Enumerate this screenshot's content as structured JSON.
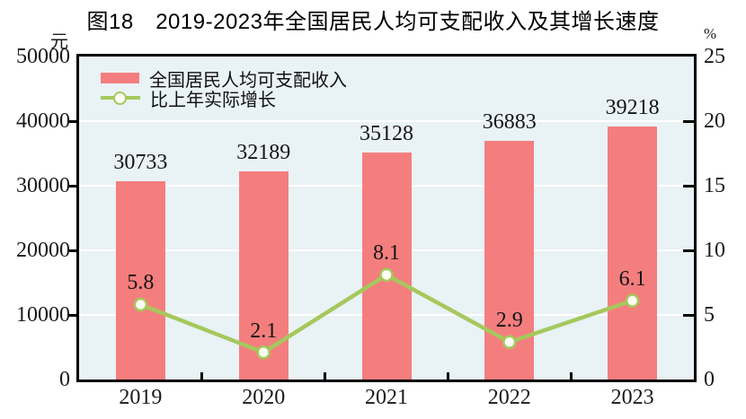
{
  "chart_data": {
    "type": "combo",
    "title": "图18　2019-2023年全国居民人均可支配收入及其增长速度",
    "categories": [
      "2019",
      "2020",
      "2021",
      "2022",
      "2023"
    ],
    "series": [
      {
        "name": "全国居民人均可支配收入",
        "type": "bar",
        "axis": "left",
        "values": [
          30733,
          32189,
          35128,
          36883,
          39218
        ],
        "labels": [
          "30733",
          "32189",
          "35128",
          "36883",
          "39218"
        ],
        "color": "#f47e7e"
      },
      {
        "name": "比上年实际增长",
        "type": "line",
        "axis": "right",
        "values": [
          5.8,
          2.1,
          8.1,
          2.9,
          6.1
        ],
        "labels": [
          "5.8",
          "2.1",
          "8.1",
          "2.9",
          "6.1"
        ],
        "color": "#a5c85c",
        "marker_fill": "#fefef4"
      }
    ],
    "left_axis": {
      "unit": "元",
      "min": 0,
      "max": 50000,
      "ticks": [
        "0",
        "10000",
        "20000",
        "30000",
        "40000",
        "50000"
      ]
    },
    "right_axis": {
      "unit": "%",
      "min": 0,
      "max": 25,
      "ticks": [
        "0",
        "5",
        "10",
        "15",
        "20",
        "25"
      ]
    },
    "plot_bg": "#e9f2f5",
    "grid_color": "#ffffff",
    "grid": true,
    "legend_position": "top-left"
  }
}
